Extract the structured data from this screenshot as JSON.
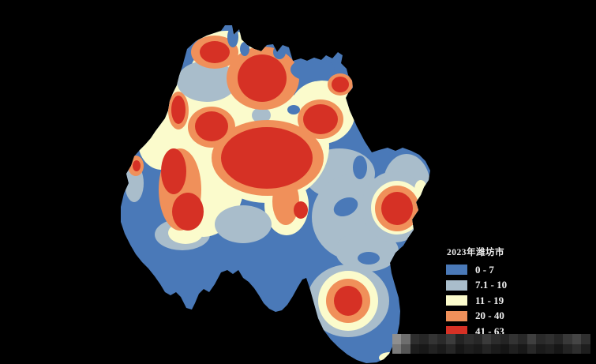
{
  "background": "#000000",
  "palette": {
    "blue": "#4a79b8",
    "lightblue": "#a9bdcb",
    "cream": "#fbfbcc",
    "orange": "#f0905a",
    "red": "#d63125"
  },
  "legend": {
    "title": "2023年潍坊市",
    "items": [
      {
        "label": "0 - 7",
        "color": "#4a79b8"
      },
      {
        "label": "7.1 - 10",
        "color": "#a9bdcb"
      },
      {
        "label": "11 - 19",
        "color": "#fbfbcc"
      },
      {
        "label": "20 - 40",
        "color": "#f0905a"
      },
      {
        "label": "41 - 63",
        "color": "#d63125"
      }
    ]
  },
  "map": {
    "region": "潍坊市",
    "year": "2023",
    "type": "classified density heatmap",
    "classes": [
      "0 - 7",
      "7.1 - 10",
      "11 - 19",
      "20 - 40",
      "41 - 63"
    ]
  },
  "watermark": {
    "rows": [
      [
        "#8f8f8f",
        "#6e6e6e",
        "#2e2e2e",
        "#262626",
        "#343434",
        "#2a2a2a",
        "#3c3c3c",
        "#232323",
        "#2e2e2e",
        "#272727",
        "#3a3a3a",
        "#2c2c2c",
        "#242424",
        "#333333",
        "#282828",
        "#3f3f3f",
        "#2a2a2a",
        "#303030",
        "#262626",
        "#383838",
        "#454545",
        "#303030"
      ],
      [
        "#7a7a7a",
        "#565656",
        "#1d1d1d",
        "#181818",
        "#222222",
        "#1a1a1a",
        "#262626",
        "#161616",
        "#1e1e1e",
        "#191919",
        "#242424",
        "#1b1b1b",
        "#151515",
        "#202020",
        "#181818",
        "#282828",
        "#1a1a1a",
        "#1f1f1f",
        "#161616",
        "#232323",
        "#2e2e2e",
        "#1e1e1e"
      ]
    ]
  }
}
